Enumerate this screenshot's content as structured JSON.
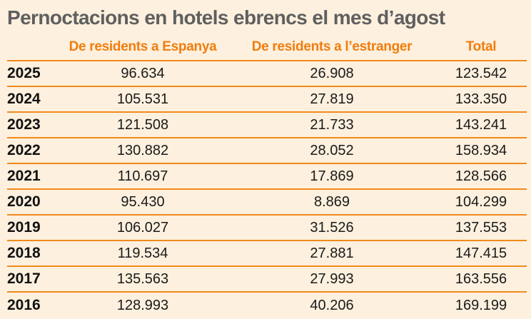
{
  "title": "Pernoctacions en hotels ebrencs el mes d’agost",
  "colors": {
    "background": "#fdf0de",
    "accent": "#f07d0e",
    "title": "#5f5f5f"
  },
  "chart_data": {
    "type": "table",
    "title": "Pernoctacions en hotels ebrencs el mes d’agost",
    "columns": [
      "",
      "De residents a Espanya",
      "De residents a l’estranger",
      "Total"
    ],
    "rows": [
      {
        "year": "2025",
        "residents_espanya": "96.634",
        "residents_estranger": "26.908",
        "total": "123.542"
      },
      {
        "year": "2024",
        "residents_espanya": "105.531",
        "residents_estranger": "27.819",
        "total": "133.350"
      },
      {
        "year": "2023",
        "residents_espanya": "121.508",
        "residents_estranger": "21.733",
        "total": "143.241"
      },
      {
        "year": "2022",
        "residents_espanya": "130.882",
        "residents_estranger": "28.052",
        "total": "158.934"
      },
      {
        "year": "2021",
        "residents_espanya": "110.697",
        "residents_estranger": "17.869",
        "total": "128.566"
      },
      {
        "year": "2020",
        "residents_espanya": "95.430",
        "residents_estranger": "8.869",
        "total": "104.299"
      },
      {
        "year": "2019",
        "residents_espanya": "106.027",
        "residents_estranger": "31.526",
        "total": "137.553"
      },
      {
        "year": "2018",
        "residents_espanya": "119.534",
        "residents_estranger": "27.881",
        "total": "147.415"
      },
      {
        "year": "2017",
        "residents_espanya": "135.563",
        "residents_estranger": "27.993",
        "total": "163.556"
      },
      {
        "year": "2016",
        "residents_espanya": "128.993",
        "residents_estranger": "40.206",
        "total": "169.199"
      }
    ]
  }
}
